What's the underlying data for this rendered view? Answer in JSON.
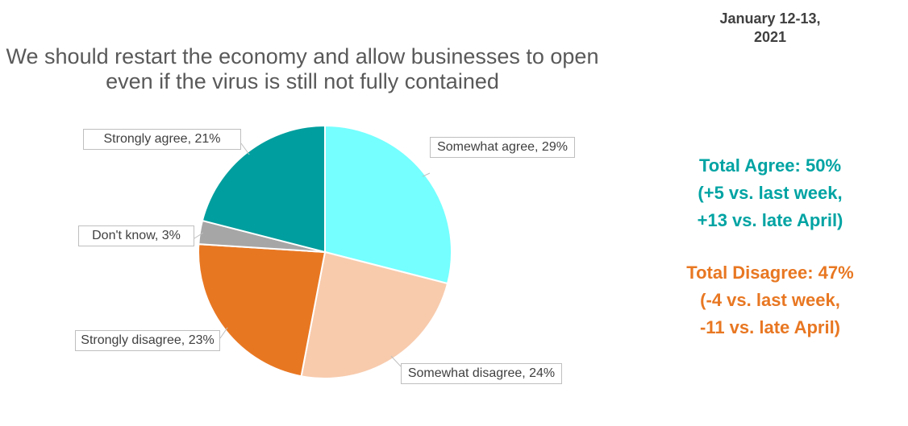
{
  "chart_data": {
    "type": "pie",
    "title": "We should restart the economy and allow businesses to open even if the virus is still not fully contained",
    "values": [
      29,
      24,
      23,
      3,
      21
    ],
    "value_labels": [
      "Somewhat agree, 29%",
      "Somewhat disagree, 24%",
      "Strongly disagree, 23%",
      "Don't know, 3%",
      "Strongly agree, 21%"
    ],
    "colors": [
      "#75ffff",
      "#f8cbad",
      "#e87722",
      "#a6a6a6",
      "#009e9e"
    ],
    "start_angle": 0,
    "direction": "clockwise"
  },
  "date": "January 12-13, 2021",
  "annotations": [
    {
      "color": "#00a3a3",
      "lines": [
        "Total Agree: 50%",
        "(+5 vs. last week,",
        "+13 vs. late April)"
      ]
    },
    {
      "color": "#e87722",
      "lines": [
        "Total Disagree: 47%",
        "(-4 vs. last week,",
        "-11 vs. late April)"
      ]
    }
  ]
}
